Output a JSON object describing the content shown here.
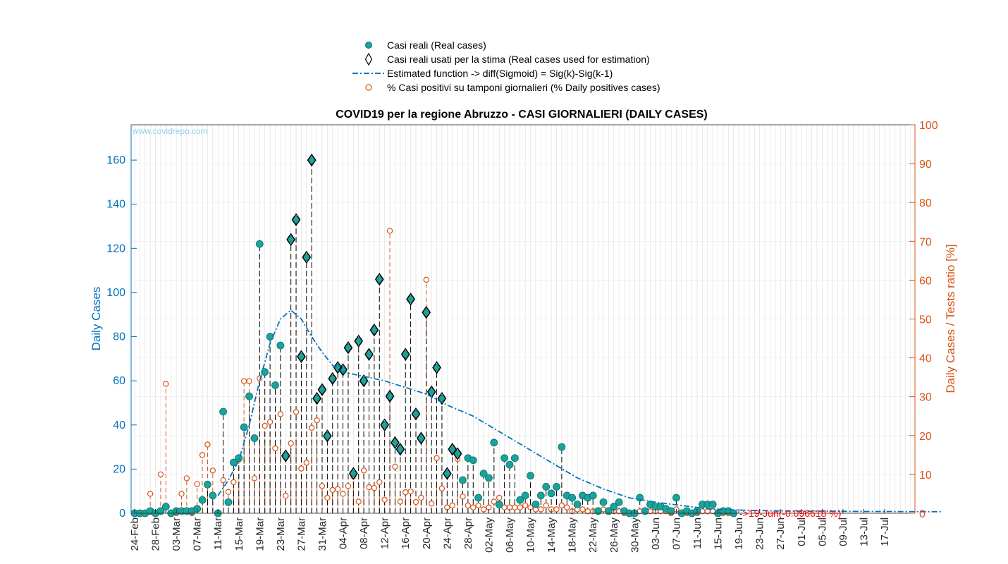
{
  "chart_data": {
    "type": "scatter",
    "title": "COVID19 per la regione Abruzzo - CASI GIORNALIERI (DAILY CASES)",
    "watermark": "www.covidrepo.com",
    "ylabel": "Daily Cases",
    "y2label": "Daily Cases / Tests ratio [%]",
    "ylim": [
      0,
      176
    ],
    "y2lim": [
      0,
      100
    ],
    "yticks": [
      0,
      20,
      40,
      60,
      80,
      100,
      120,
      140,
      160
    ],
    "y2ticks": [
      0,
      10,
      20,
      30,
      40,
      50,
      60,
      70,
      80,
      90,
      100
    ],
    "x_start_date": "24-Feb",
    "xticks": [
      "24-Feb",
      "28-Feb",
      "03-Mar",
      "07-Mar",
      "11-Mar",
      "15-Mar",
      "19-Mar",
      "23-Mar",
      "27-Mar",
      "31-Mar",
      "04-Apr",
      "08-Apr",
      "12-Apr",
      "16-Apr",
      "20-Apr",
      "24-Apr",
      "28-Apr",
      "02-May",
      "06-May",
      "10-May",
      "14-May",
      "18-May",
      "22-May",
      "26-May",
      "30-May",
      "03-Jun",
      "07-Jun",
      "11-Jun",
      "15-Jun",
      "19-Jun",
      "23-Jun",
      "27-Jun",
      "01-Jul",
      "05-Jul",
      "09-Jul",
      "13-Jul",
      "17-Jul"
    ],
    "grid": "on",
    "legend_position": "top",
    "legend": [
      "Casi reali (Real cases)",
      "Casi reali usati per la stima (Real cases used for estimation)",
      "Estimated function -> diff(Sigmoid) = Sig(k)-Sig(k-1)",
      "% Casi positivi su tamponi giornalieri (% Daily positives cases)"
    ],
    "annotation": "->19-Jun(-0.096618 %)",
    "colors": {
      "left_axis": "#0072bd",
      "right_axis": "#d95319",
      "marker_fill": "#1aa39a",
      "annotation": "#ff0000",
      "stem": "#000000"
    },
    "series": [
      {
        "name": "Casi reali (Real cases)",
        "values": [
          0,
          0,
          0,
          1,
          0,
          1,
          3,
          0,
          1,
          1,
          1,
          1,
          2,
          6,
          13,
          8,
          0,
          46,
          5,
          23,
          25,
          39,
          53,
          34,
          122,
          64,
          80,
          58,
          76,
          26,
          124,
          133,
          71,
          116,
          160,
          52,
          56,
          35,
          61,
          66,
          65,
          75,
          18,
          78,
          60,
          72,
          83,
          106,
          40,
          53,
          32,
          29,
          72,
          97,
          45,
          34,
          91,
          55,
          66,
          52,
          18,
          29,
          27,
          15,
          25,
          24,
          7,
          18,
          16,
          32,
          4,
          25,
          22,
          25,
          6,
          8,
          17,
          4,
          8,
          12,
          9,
          12,
          30,
          8,
          7,
          4,
          8,
          7,
          8,
          1,
          5,
          1,
          3,
          5,
          1,
          0,
          0,
          7,
          1,
          4,
          3,
          3,
          2,
          1,
          7,
          0,
          1,
          0,
          1,
          4,
          4,
          4,
          0,
          1,
          1,
          0
        ]
      },
      {
        "name": "Casi reali usati per la stima (Real cases used for estimation)",
        "day_offset": 29,
        "values": [
          26,
          124,
          133,
          71,
          116,
          160,
          52,
          56,
          35,
          61,
          66,
          65,
          75,
          18,
          78,
          60,
          72,
          83,
          106,
          40,
          53,
          32,
          29,
          72,
          97,
          45,
          34,
          91,
          55,
          66,
          52,
          18,
          29,
          27
        ]
      },
      {
        "name": "Estimated function -> diff(Sigmoid) = Sig(k)-Sig(k-1)",
        "days": [
          16,
          18,
          20,
          22,
          24,
          26,
          28,
          30,
          32,
          34,
          36,
          38,
          40,
          44,
          48,
          52,
          56,
          60,
          65,
          70,
          75,
          80,
          85,
          90,
          95,
          100,
          105,
          110,
          115,
          120,
          125,
          130,
          135,
          140,
          145,
          150,
          155
        ],
        "values": [
          8,
          15,
          24,
          40,
          60,
          77,
          88,
          92,
          88,
          80,
          73,
          67,
          64,
          62,
          60,
          57,
          54,
          49,
          44,
          37,
          30,
          23,
          16,
          11,
          7,
          5,
          3.5,
          2,
          1.5,
          1.2,
          1,
          0.9,
          0.9,
          0.8,
          0.8,
          0.7,
          0.7
        ]
      },
      {
        "name": "% Casi positivi su tamponi giornalieri (% Daily positives cases)",
        "values": [
          0,
          0,
          0,
          5,
          0,
          10,
          33.3,
          0,
          0,
          5,
          9,
          0,
          7.5,
          15,
          17.7,
          11,
          0,
          8.5,
          5.5,
          8,
          13.8,
          34,
          34,
          9,
          34.7,
          22.5,
          23.5,
          16.7,
          25.5,
          4.5,
          18,
          26.1,
          11.5,
          13,
          22,
          23.9,
          7,
          4,
          6,
          6.2,
          5,
          7,
          9.5,
          3,
          11,
          6.7,
          6.5,
          8,
          3.5,
          72.7,
          12,
          3,
          5.4,
          5.6,
          2.9,
          4,
          60.1,
          2.5,
          14.2,
          6.4,
          1.5,
          2,
          14,
          4.3,
          2,
          1.5,
          2,
          1,
          1.5,
          3,
          4,
          1.5,
          1.5,
          1.5,
          1.5,
          2,
          1.5,
          1,
          1,
          2,
          1,
          1,
          2,
          1.5,
          0.5,
          1,
          1,
          0.5,
          0.5,
          0.5,
          1,
          0.5,
          0.5,
          0.5,
          0,
          0,
          0,
          0.5,
          0.5,
          0.5,
          0.5,
          0.5,
          0.5,
          0,
          1,
          0,
          0,
          0,
          0,
          0.5,
          0.5,
          0.5,
          0,
          0,
          0,
          0
        ]
      }
    ]
  }
}
